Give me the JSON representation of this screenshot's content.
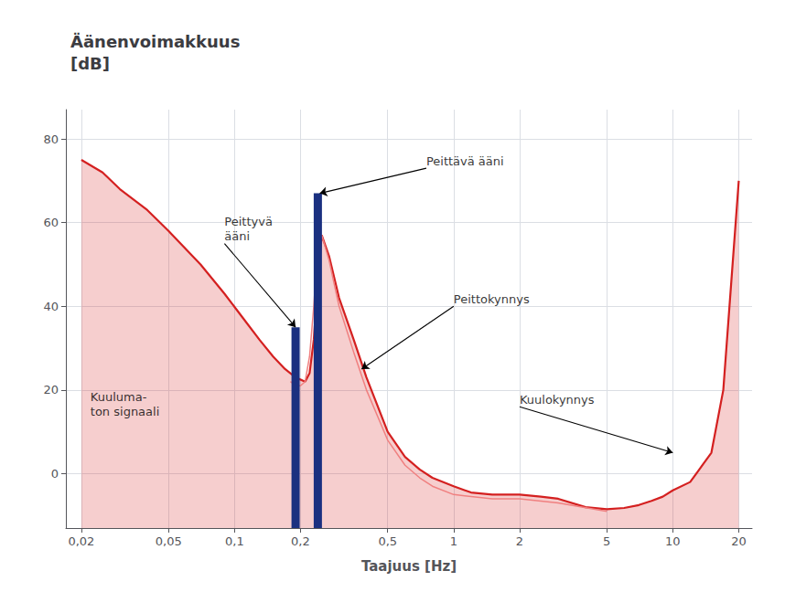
{
  "chart_data": {
    "type": "line",
    "title": "Äänenvoimakkuus\n[dB]",
    "xlabel": "Taajuus [Hz]",
    "log": "x",
    "grid": true,
    "xlim": [
      0.017,
      23
    ],
    "xticks": [
      {
        "value": 0.02,
        "label": "0,02"
      },
      {
        "value": 0.05,
        "label": "0,05"
      },
      {
        "value": 0.1,
        "label": "0,1"
      },
      {
        "value": 0.2,
        "label": "0,2"
      },
      {
        "value": 0.5,
        "label": "0,5"
      },
      1,
      2,
      5,
      10,
      20
    ],
    "ylim": [
      -13,
      87
    ],
    "yticks": [
      0,
      20,
      40,
      60,
      80
    ],
    "series": [
      {
        "type": "area",
        "color": "#d42020",
        "x": [
          0.02,
          0.025,
          0.03,
          0.04,
          0.05,
          0.07,
          0.09,
          0.11,
          0.13,
          0.15,
          0.17,
          0.19,
          0.21,
          0.22,
          0.23,
          0.24,
          0.25,
          0.27,
          0.3,
          0.35,
          0.4,
          0.5,
          0.6,
          0.7,
          0.8,
          1.0,
          1.2,
          1.5,
          2.0,
          2.5,
          3.0,
          4.0,
          5.0,
          6.0,
          7.0,
          8.0,
          9.0,
          10.0,
          12.0,
          15.0,
          17.0,
          20.0
        ],
        "values": [
          75,
          72,
          68,
          63,
          58,
          50,
          43,
          37,
          32,
          28,
          25,
          23,
          22,
          24,
          32,
          46,
          57,
          52,
          42,
          32,
          23,
          10,
          4,
          1,
          -1,
          -3,
          -4.5,
          -5,
          -5,
          -5.5,
          -6,
          -8,
          -8.5,
          -8.2,
          -7.5,
          -6.5,
          -5.5,
          -4,
          -2,
          5,
          20,
          70
        ]
      },
      {
        "type": "line",
        "color": "#f08080",
        "x": [
          0.18,
          0.19,
          0.2,
          0.21,
          0.22,
          0.23,
          0.24,
          0.25,
          0.27,
          0.3,
          0.35,
          0.4,
          0.5,
          0.6,
          0.7,
          0.8,
          1.0,
          1.5,
          2.0,
          3.0,
          5.0
        ],
        "values": [
          22,
          21,
          21,
          22,
          28,
          40,
          55,
          57,
          51,
          40,
          29,
          20,
          8,
          2,
          -1,
          -3,
          -5,
          -6,
          -6,
          -7,
          -9
        ]
      },
      {
        "type": "bar",
        "color": "#1a3080",
        "x": [
          0.19,
          0.24
        ],
        "values": [
          35,
          67
        ]
      }
    ],
    "annotations": [
      {
        "text": "Peittävä ääni",
        "x": 0.245,
        "y": 67,
        "text_x": 0.75,
        "text_y": 73
      },
      {
        "text": "Peittyvä\nääni",
        "x": 0.19,
        "y": 35,
        "text_x": 0.09,
        "text_y": 55
      },
      {
        "text": "Peittokynnys",
        "x": 0.38,
        "y": 25,
        "text_x": 1.0,
        "text_y": 40
      },
      {
        "text": "Kuulokynnys",
        "x": 10.0,
        "y": 5,
        "text_x": 2.0,
        "text_y": 16
      },
      {
        "text": "Kuuluma-\nton signaali",
        "text_x": 0.022,
        "text_y": 20
      }
    ]
  }
}
